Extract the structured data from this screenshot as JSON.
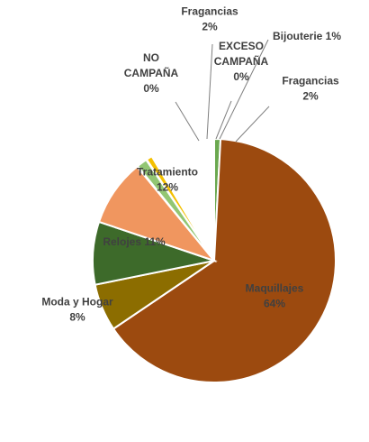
{
  "chart_data": {
    "type": "pie",
    "slices": [
      {
        "name": "Fragancias",
        "value": 2,
        "label": "2%",
        "color": "#6aa84f",
        "label_lines": [
          "Fragancias",
          "2%"
        ]
      },
      {
        "name": "Maquillajes",
        "value": 64,
        "label": "64%",
        "color": "#9c4a0f",
        "label_lines": [
          "Maquillajes",
          "64%"
        ]
      },
      {
        "name": "Moda y Hogar",
        "value": 8,
        "label": "8%",
        "color": "#8c6d00",
        "label_lines": [
          "Moda y Hogar",
          "8%"
        ]
      },
      {
        "name": "Relojes",
        "value": 11,
        "label": "11%",
        "color": "#3d6a2a",
        "label_lines": [
          "Relojes 11%"
        ]
      },
      {
        "name": "Tratamiento",
        "value": 12,
        "label": "12%",
        "color": "#f0965f",
        "label_lines": [
          "Tratamiento",
          "12%"
        ]
      },
      {
        "name": "NO CAMPAÑA",
        "value": 0,
        "label": "0%",
        "color": "#c9a66b",
        "label_lines": [
          "NO",
          "CAMPAÑA",
          "0%"
        ]
      },
      {
        "name": "Fragancias",
        "value": 2,
        "label": "2%",
        "color": "#92c673",
        "label_lines": [
          "Fragancias",
          "2%"
        ]
      },
      {
        "name": "EXCESO CAMPAÑA",
        "value": 0,
        "label": "0%",
        "color": "#bdbdbd",
        "label_lines": [
          "EXCESO",
          "CAMPAÑA",
          "0%"
        ]
      },
      {
        "name": "Bijouterie",
        "value": 1,
        "label": "1%",
        "color": "#f4c000",
        "label_lines": [
          "Bijouterie 1%"
        ]
      }
    ]
  }
}
